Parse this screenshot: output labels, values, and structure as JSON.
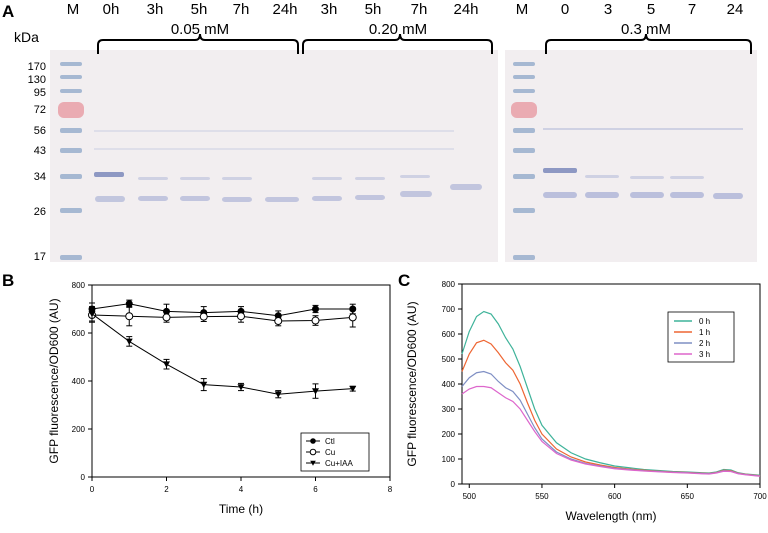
{
  "panel_a": {
    "label": "A",
    "kda_label": "kDa",
    "mw_markers": [
      "170",
      "130",
      "95",
      "72",
      "56",
      "43",
      "34",
      "26",
      "17"
    ],
    "gel1_lanes": [
      "M",
      "0h",
      "3h",
      "5h",
      "7h",
      "24h",
      "3h",
      "5h",
      "7h",
      "24h"
    ],
    "gel2_lanes": [
      "M",
      "0",
      "3",
      "5",
      "7",
      "24"
    ],
    "conc1": "0.05 mM",
    "conc2": "0.20 mM",
    "conc3": "0.3 mM"
  },
  "panel_b": {
    "label": "B",
    "chart_data": {
      "type": "line",
      "xlabel": "Time (h)",
      "ylabel": "GFP fluorescence/OD600 (AU)",
      "xlim": [
        0,
        8
      ],
      "ylim": [
        0,
        800
      ],
      "xticks": [
        "0",
        "2",
        "4",
        "6",
        "8"
      ],
      "yticks": [
        "0",
        "200",
        "400",
        "600",
        "800"
      ],
      "legend_position": "bottom-right",
      "series": [
        {
          "name": "Ctl",
          "marker": "filled-circle",
          "x": [
            0,
            1,
            2,
            3,
            4,
            5,
            6,
            7
          ],
          "y": [
            700,
            722,
            690,
            685,
            690,
            672,
            700,
            700
          ],
          "err": [
            25,
            15,
            30,
            25,
            20,
            20,
            15,
            20
          ]
        },
        {
          "name": "Cu",
          "marker": "open-circle",
          "x": [
            0,
            1,
            2,
            3,
            4,
            5,
            6,
            7
          ],
          "y": [
            675,
            670,
            665,
            668,
            670,
            650,
            652,
            665
          ],
          "err": [
            30,
            40,
            20,
            20,
            25,
            20,
            20,
            40
          ]
        },
        {
          "name": "Cu+IAA",
          "marker": "filled-triangle-down",
          "x": [
            0,
            1,
            2,
            3,
            4,
            5,
            6,
            7
          ],
          "y": [
            680,
            565,
            470,
            385,
            375,
            345,
            358,
            368
          ],
          "err": [
            30,
            20,
            20,
            25,
            15,
            15,
            30,
            10
          ]
        }
      ]
    }
  },
  "panel_c": {
    "label": "C",
    "chart_data": {
      "type": "line",
      "xlabel": "Wavelength (nm)",
      "ylabel": "GFP fluorescence/OD600 (AU)",
      "xlim": [
        495,
        700
      ],
      "ylim": [
        0,
        800
      ],
      "xticks": [
        "500",
        "550",
        "600",
        "650",
        "700"
      ],
      "yticks": [
        "0",
        "100",
        "200",
        "300",
        "400",
        "500",
        "600",
        "700",
        "800"
      ],
      "legend_position": "top-right",
      "x": [
        495,
        500,
        505,
        510,
        515,
        520,
        525,
        530,
        535,
        540,
        545,
        550,
        560,
        570,
        580,
        590,
        600,
        610,
        620,
        630,
        640,
        650,
        660,
        665,
        670,
        675,
        680,
        685,
        690,
        700
      ],
      "series": [
        {
          "name": "0 h",
          "color": "#3fb39a",
          "values": [
            520,
            610,
            670,
            690,
            680,
            640,
            585,
            540,
            470,
            385,
            300,
            235,
            165,
            125,
            100,
            85,
            72,
            65,
            58,
            54,
            50,
            48,
            45,
            44,
            48,
            58,
            56,
            45,
            40,
            35
          ]
        },
        {
          "name": "1 h",
          "color": "#ee6633",
          "values": [
            450,
            520,
            565,
            575,
            560,
            525,
            485,
            455,
            400,
            325,
            255,
            200,
            140,
            108,
            88,
            76,
            66,
            60,
            55,
            51,
            48,
            46,
            43,
            42,
            46,
            55,
            53,
            43,
            39,
            33
          ]
        },
        {
          "name": "2 h",
          "color": "#7f8fc4",
          "values": [
            390,
            425,
            445,
            450,
            440,
            410,
            385,
            370,
            335,
            280,
            225,
            180,
            128,
            100,
            82,
            72,
            63,
            58,
            53,
            50,
            47,
            45,
            42,
            41,
            45,
            53,
            51,
            42,
            38,
            32
          ]
        },
        {
          "name": "3 h",
          "color": "#dd66cc",
          "values": [
            360,
            380,
            390,
            390,
            385,
            365,
            345,
            330,
            300,
            255,
            210,
            170,
            122,
            96,
            80,
            70,
            61,
            56,
            52,
            49,
            46,
            44,
            41,
            40,
            44,
            51,
            50,
            41,
            37,
            31
          ]
        }
      ]
    }
  }
}
